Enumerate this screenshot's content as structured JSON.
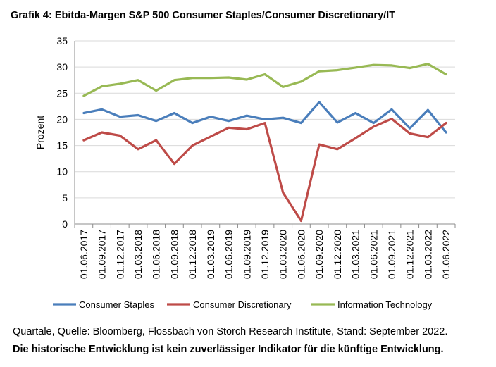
{
  "title": "Grafik 4: Ebitda-Margen S&P 500 Consumer Staples/Consumer Discretionary/IT",
  "source_note": "Quartale, Quelle: Bloomberg, Flossbach von Storch Research Institute, Stand: September 2022.",
  "disclaimer": "Die historische Entwicklung ist kein zuverlässiger Indikator für die künftige Entwicklung.",
  "chart_data": {
    "type": "line",
    "ylabel": "Prozent",
    "xlabel": "",
    "ylim": [
      0,
      35
    ],
    "yticks": [
      "0",
      "5",
      "10",
      "15",
      "20",
      "25",
      "30",
      "35"
    ],
    "grid": "horizontal",
    "legend_position": "bottom",
    "categories": [
      "01.06.2017",
      "01.09.2017",
      "01.12.2017",
      "01.03.2018",
      "01.06.2018",
      "01.09.2018",
      "01.12.2018",
      "01.03.2019",
      "01.06.2019",
      "01.09.2019",
      "01.12.2019",
      "01.03.2020",
      "01.06.2020",
      "01.09.2020",
      "01.12.2020",
      "01.03.2021",
      "01.06.2021",
      "01.09.2021",
      "01.12.2021",
      "01.03.2022",
      "01.06.2022"
    ],
    "series": [
      {
        "name": "Consumer Staples",
        "color": "#4a7ebb",
        "values": [
          21.2,
          21.9,
          20.5,
          20.8,
          19.7,
          21.2,
          19.3,
          20.5,
          19.7,
          20.7,
          20.0,
          20.3,
          19.3,
          23.3,
          19.4,
          21.2,
          19.3,
          21.9,
          18.3,
          21.8,
          17.5
        ]
      },
      {
        "name": "Consumer Discretionary",
        "color": "#be4b48",
        "values": [
          16.0,
          17.5,
          16.9,
          14.3,
          16.0,
          11.5,
          15.0,
          16.7,
          18.4,
          18.1,
          19.3,
          6.0,
          0.6,
          15.2,
          14.3,
          16.4,
          18.6,
          20.1,
          17.3,
          16.6,
          19.3
        ]
      },
      {
        "name": "Information Technology",
        "color": "#98b954",
        "values": [
          24.5,
          26.3,
          26.8,
          27.5,
          25.5,
          27.5,
          27.9,
          27.9,
          28.0,
          27.6,
          28.6,
          26.2,
          27.2,
          29.2,
          29.4,
          29.9,
          30.4,
          30.3,
          29.8,
          30.6,
          28.6
        ]
      }
    ]
  }
}
